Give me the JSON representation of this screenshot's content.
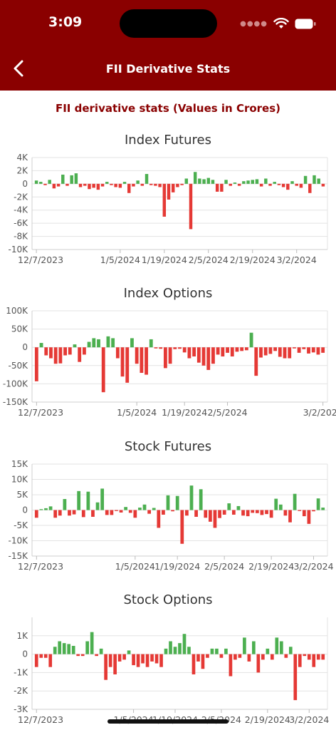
{
  "status_bar": {
    "time": "3:09"
  },
  "nav": {
    "title": "FII Derivative Stats"
  },
  "page": {
    "subtitle": "FII derivative stats (Values in Crores)"
  },
  "colors": {
    "header": "#8a0000",
    "positive": "#4caf50",
    "negative": "#e53935"
  },
  "chart_data": [
    {
      "type": "bar",
      "title": "Index Futures",
      "ylim": [
        -10000,
        4000
      ],
      "yticks": [
        4000,
        2000,
        0,
        -2000,
        -4000,
        -6000,
        -8000,
        -10000
      ],
      "ytick_labels": [
        "4K",
        "2K",
        "0",
        "-2K",
        "-4K",
        "-6K",
        "-8K",
        "-10K"
      ],
      "xtick_labels": [
        {
          "label": "12/7/2023",
          "pos": 0
        },
        {
          "label": "1/5/2024",
          "pos": 19
        },
        {
          "label": "1/19/2024",
          "pos": 29
        },
        {
          "label": "2/5/2024",
          "pos": 39
        },
        {
          "label": "2/19/2024",
          "pos": 49
        },
        {
          "label": "3/2/2024",
          "pos": 59
        }
      ],
      "grid": true,
      "values": [
        500,
        300,
        -200,
        600,
        -700,
        -400,
        1400,
        -300,
        1300,
        1600,
        -500,
        -300,
        -800,
        -600,
        -900,
        -400,
        300,
        -200,
        -500,
        -600,
        300,
        -1400,
        -400,
        500,
        -300,
        1500,
        -200,
        -300,
        -500,
        -5000,
        -2400,
        -1300,
        -500,
        -200,
        800,
        -6900,
        1800,
        800,
        700,
        900,
        600,
        -1200,
        -1200,
        600,
        -300,
        200,
        -300,
        400,
        500,
        600,
        700,
        -400,
        800,
        -300,
        300,
        -200,
        -500,
        -900,
        400,
        -300,
        -600,
        1200,
        -1400,
        1300,
        800,
        -400
      ]
    },
    {
      "type": "bar",
      "title": "Index Options",
      "ylim": [
        -150000,
        100000
      ],
      "yticks": [
        100000,
        50000,
        0,
        -50000,
        -100000,
        -150000
      ],
      "ytick_labels": [
        "100K",
        "50K",
        "0",
        "-50K",
        "-100K",
        "-150K"
      ],
      "xtick_labels": [
        {
          "label": "12/7/2023",
          "pos": 0
        },
        {
          "label": "1/5/2024",
          "pos": 21
        },
        {
          "label": "1/19/2024",
          "pos": 31
        },
        {
          "label": "2/5/2024",
          "pos": 40
        },
        {
          "label": "3/2/2024",
          "pos": 60
        }
      ],
      "grid": true,
      "values": [
        -93000,
        12000,
        -22000,
        -30000,
        -45000,
        -44000,
        -22000,
        -20000,
        8000,
        -40000,
        -20000,
        15000,
        25000,
        22000,
        -123000,
        30000,
        25000,
        -30000,
        -80000,
        -97000,
        25000,
        -45000,
        -70000,
        -75000,
        22000,
        -3000,
        -4000,
        -57000,
        -45000,
        -5000,
        -4000,
        -14000,
        -30000,
        -25000,
        -42000,
        -50000,
        -62000,
        -45000,
        -20000,
        -25000,
        -15000,
        -25000,
        -12000,
        -10000,
        -8000,
        40000,
        -78000,
        -28000,
        -22000,
        -18000,
        -10000,
        -26000,
        -30000,
        -30000,
        -3000,
        -15000,
        -5000,
        -17000,
        -14000,
        -20000,
        -15000
      ]
    },
    {
      "type": "bar",
      "title": "Stock Futures",
      "ylim": [
        -15000,
        15000
      ],
      "yticks": [
        15000,
        10000,
        5000,
        0,
        -5000,
        -10000,
        -15000
      ],
      "ytick_labels": [
        "15K",
        "10K",
        "5K",
        "0",
        "-5K",
        "-10K",
        "-15K"
      ],
      "xtick_labels": [
        {
          "label": "12/7/2023",
          "pos": 0
        },
        {
          "label": "1/5/2024",
          "pos": 21
        },
        {
          "label": "1/19/2024",
          "pos": 30
        },
        {
          "label": "2/5/2024",
          "pos": 40
        },
        {
          "label": "2/19/2024",
          "pos": 50
        },
        {
          "label": "3/2/2024",
          "pos": 59
        }
      ],
      "grid": true,
      "values": [
        -2500,
        300,
        600,
        1200,
        -2500,
        -1800,
        3600,
        -1800,
        -1400,
        6200,
        -2300,
        6000,
        -2200,
        2500,
        7000,
        -1600,
        -1600,
        -300,
        -800,
        1000,
        -900,
        -2500,
        800,
        1800,
        -1200,
        700,
        -5800,
        -1500,
        4800,
        -400,
        4600,
        -11000,
        -1800,
        8000,
        -2200,
        6800,
        -2500,
        -3800,
        -5800,
        -2600,
        -1500,
        2200,
        -1500,
        1300,
        -1800,
        -2000,
        -900,
        -1000,
        -1600,
        -1300,
        -2500,
        3700,
        1800,
        -1800,
        -4000,
        5300,
        -300,
        -2000,
        -4500,
        -400,
        3800,
        800
      ]
    },
    {
      "type": "bar",
      "title": "Stock Options",
      "ylim": [
        -3000,
        2000
      ],
      "yticks": [
        1000,
        0,
        -1000,
        -2000,
        -3000
      ],
      "ytick_labels": [
        "1K",
        "0",
        "-1K",
        "-2K",
        "-3K"
      ],
      "xtick_labels": [
        {
          "label": "12/7/2023",
          "pos": 0
        },
        {
          "label": "1/5/2024",
          "pos": 21
        },
        {
          "label": "1/19/2024",
          "pos": 30
        },
        {
          "label": "2/5/2024",
          "pos": 40
        },
        {
          "label": "2/19/2024",
          "pos": 50
        },
        {
          "label": "3/2/2024",
          "pos": 59
        }
      ],
      "grid": true,
      "values": [
        -700,
        -200,
        -200,
        -700,
        400,
        700,
        600,
        550,
        450,
        -100,
        -100,
        700,
        1200,
        -100,
        300,
        -1400,
        -700,
        -1100,
        -400,
        -300,
        200,
        -600,
        -700,
        -500,
        -700,
        -400,
        -500,
        -700,
        300,
        700,
        400,
        600,
        1100,
        400,
        -1100,
        -400,
        -800,
        -200,
        300,
        300,
        -200,
        300,
        -1200,
        -300,
        -200,
        900,
        -400,
        700,
        -1000,
        -300,
        300,
        -300,
        900,
        700,
        -200,
        400,
        -2500,
        -700,
        -100,
        -300,
        -700,
        -300,
        -300
      ]
    }
  ]
}
